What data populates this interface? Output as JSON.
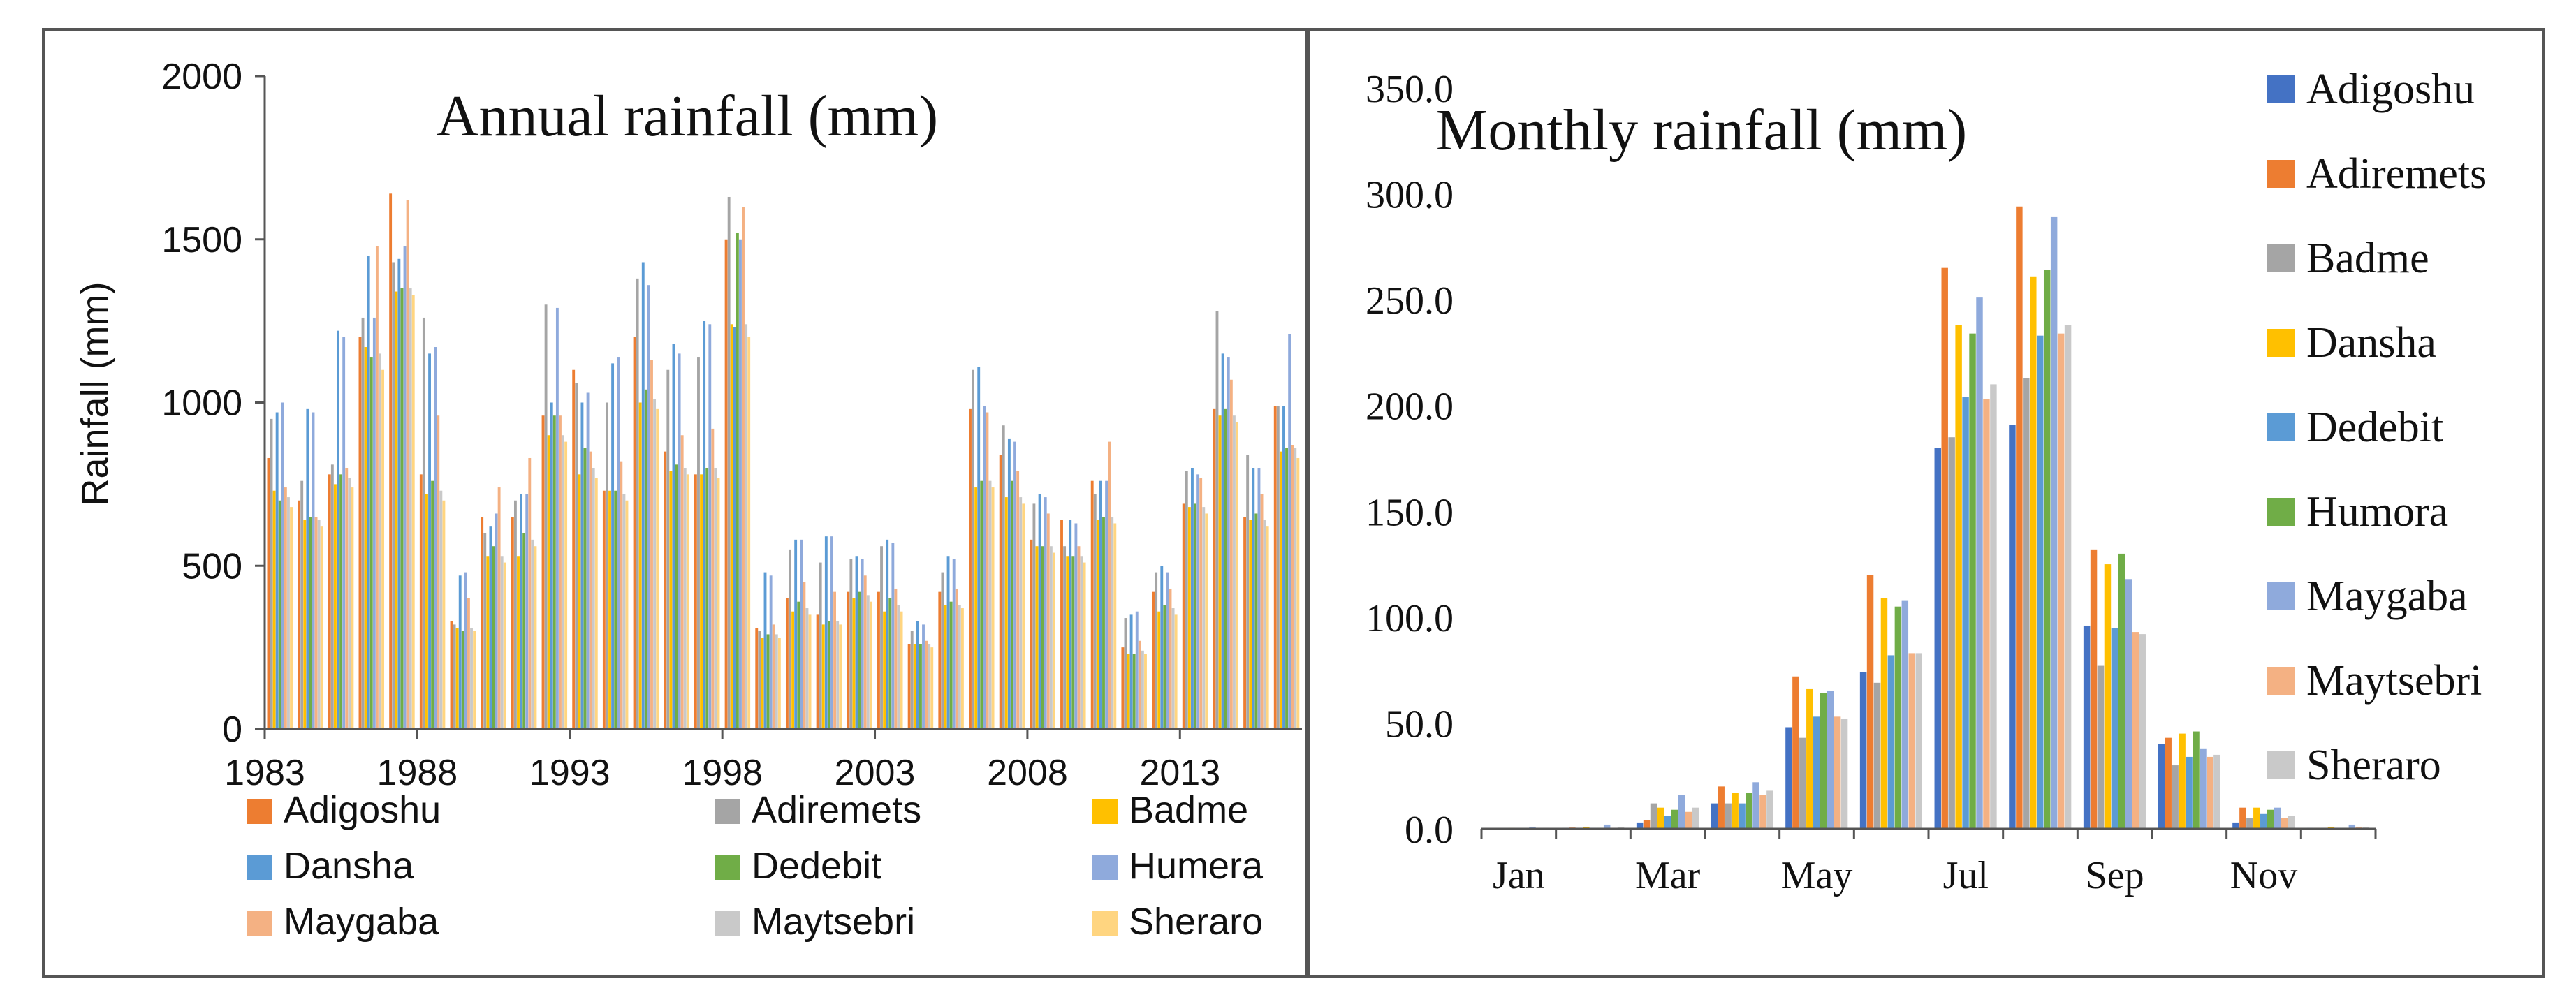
{
  "colors": {
    "Adigoshu": "#4472c4",
    "Adiremets": "#ed7d31",
    "Badme": "#a5a5a5",
    "Dansha": "#ffc000",
    "Dedebit": "#5b9bd5",
    "Humera": "#70ad47",
    "Maygaba": "#8faadc",
    "Maytsebri": "#f4b183",
    "Sheraro": "#c9c9c9"
  },
  "chart_data": [
    {
      "type": "bar",
      "title": "Annual rainfall (mm)",
      "ylabel": "Rainfall (mm)",
      "ylim": [
        0,
        2000
      ],
      "yticks": [
        "0",
        "500",
        "1000",
        "1500",
        "2000"
      ],
      "ytick_values": [
        0,
        500,
        1000,
        1500,
        2000
      ],
      "xtick_labels": [
        "1983",
        "1988",
        "1993",
        "1998",
        "2003",
        "2008",
        "2013"
      ],
      "legend": [
        {
          "name": "Adigoshu",
          "color": "#ed7d31"
        },
        {
          "name": "Adiremets",
          "color": "#a5a5a5"
        },
        {
          "name": "Badme",
          "color": "#ffc000"
        },
        {
          "name": "Dansha",
          "color": "#5b9bd5"
        },
        {
          "name": "Dedebit",
          "color": "#70ad47"
        },
        {
          "name": "Humera",
          "color": "#8faadc"
        },
        {
          "name": "Maygaba",
          "color": "#f4b183"
        },
        {
          "name": "Maytsebri",
          "color": "#c9c9c9"
        },
        {
          "name": "Sheraro",
          "color": "#ffd580"
        }
      ],
      "x": [
        1983,
        1984,
        1985,
        1986,
        1987,
        1988,
        1989,
        1990,
        1991,
        1992,
        1993,
        1994,
        1995,
        1996,
        1997,
        1998,
        1999,
        2000,
        2001,
        2002,
        2003,
        2004,
        2005,
        2006,
        2007,
        2008,
        2009,
        2010,
        2011,
        2012,
        2013,
        2014,
        2015,
        2016
      ],
      "series": [
        {
          "name": "Adigoshu",
          "color": "#ed7d31",
          "values": [
            830,
            700,
            780,
            1200,
            1640,
            780,
            330,
            650,
            650,
            960,
            1100,
            730,
            1200,
            850,
            780,
            1500,
            310,
            400,
            350,
            420,
            420,
            260,
            420,
            980,
            840,
            580,
            640,
            760,
            250,
            420,
            690,
            980,
            650,
            990
          ]
        },
        {
          "name": "Adiremets",
          "color": "#a5a5a5",
          "values": [
            950,
            760,
            810,
            1260,
            1430,
            1260,
            320,
            600,
            700,
            1300,
            1060,
            1000,
            1380,
            1100,
            1140,
            1630,
            300,
            550,
            510,
            520,
            560,
            300,
            480,
            1100,
            930,
            690,
            560,
            720,
            340,
            480,
            790,
            1280,
            840,
            990
          ]
        },
        {
          "name": "Badme",
          "color": "#ffc000",
          "values": [
            730,
            640,
            750,
            1170,
            1340,
            720,
            310,
            530,
            530,
            900,
            780,
            730,
            1000,
            790,
            780,
            1240,
            280,
            360,
            320,
            400,
            360,
            260,
            380,
            740,
            710,
            560,
            530,
            640,
            230,
            360,
            680,
            960,
            640,
            850
          ]
        },
        {
          "name": "Dansha",
          "color": "#5b9bd5",
          "values": [
            970,
            980,
            1220,
            1450,
            1440,
            1150,
            470,
            620,
            720,
            1000,
            1000,
            1120,
            1430,
            1180,
            1250,
            1230,
            480,
            580,
            590,
            530,
            580,
            330,
            530,
            1110,
            890,
            720,
            640,
            760,
            350,
            500,
            800,
            1150,
            800,
            990
          ]
        },
        {
          "name": "Dedebit",
          "color": "#70ad47",
          "values": [
            700,
            650,
            780,
            1140,
            1350,
            760,
            300,
            560,
            600,
            960,
            860,
            730,
            1040,
            810,
            800,
            1520,
            290,
            390,
            330,
            420,
            400,
            260,
            390,
            760,
            760,
            560,
            530,
            650,
            230,
            380,
            690,
            980,
            660,
            860
          ]
        },
        {
          "name": "Humera",
          "color": "#8faadc",
          "values": [
            1000,
            970,
            1200,
            1260,
            1480,
            1170,
            480,
            660,
            720,
            1290,
            1030,
            1140,
            1360,
            1150,
            1240,
            1500,
            470,
            580,
            590,
            520,
            570,
            320,
            520,
            990,
            880,
            710,
            630,
            760,
            360,
            480,
            780,
            1140,
            800,
            1210
          ]
        },
        {
          "name": "Maygaba",
          "color": "#f4b183",
          "values": [
            740,
            650,
            800,
            1480,
            1620,
            960,
            400,
            740,
            830,
            960,
            850,
            820,
            1130,
            900,
            920,
            1600,
            320,
            450,
            420,
            470,
            430,
            270,
            430,
            970,
            790,
            660,
            560,
            880,
            270,
            430,
            770,
            1070,
            720,
            870
          ]
        },
        {
          "name": "Maytsebri",
          "color": "#c9c9c9",
          "values": [
            710,
            640,
            770,
            1150,
            1350,
            730,
            310,
            530,
            580,
            900,
            800,
            720,
            1010,
            800,
            800,
            1240,
            290,
            370,
            330,
            410,
            380,
            260,
            380,
            760,
            710,
            560,
            530,
            650,
            240,
            370,
            680,
            960,
            640,
            860
          ]
        },
        {
          "name": "Sheraro",
          "color": "#ffd580",
          "values": [
            680,
            620,
            740,
            1100,
            1330,
            700,
            300,
            510,
            560,
            880,
            770,
            700,
            980,
            780,
            770,
            1200,
            280,
            350,
            320,
            390,
            360,
            250,
            370,
            740,
            690,
            540,
            510,
            630,
            230,
            350,
            660,
            940,
            620,
            830
          ]
        }
      ]
    },
    {
      "type": "bar",
      "title": "Monthly rainfall (mm)",
      "ylim": [
        0,
        350
      ],
      "yticks": [
        "0.0",
        "50.0",
        "100.0",
        "150.0",
        "200.0",
        "250.0",
        "300.0",
        "350.0"
      ],
      "ytick_values": [
        0,
        50,
        100,
        150,
        200,
        250,
        300,
        350
      ],
      "categories": [
        "Jan",
        "Feb",
        "Mar",
        "Apr",
        "May",
        "Jun",
        "Jul",
        "Aug",
        "Sep",
        "Oct",
        "Nov",
        "Dec"
      ],
      "xtick_labels": [
        "Jan",
        "Mar",
        "May",
        "Jul",
        "Sep",
        "Nov"
      ],
      "series": [
        {
          "name": "Adigoshu",
          "color": "#4472c4",
          "values": [
            0.2,
            0.5,
            3.0,
            12.0,
            48.0,
            74.0,
            180.0,
            191.0,
            96.0,
            40.0,
            3.0,
            0.5
          ]
        },
        {
          "name": "Adiremets",
          "color": "#ed7d31",
          "values": [
            0.3,
            0.6,
            4.0,
            20.0,
            72.0,
            120.0,
            265.0,
            294.0,
            132.0,
            43.0,
            10.0,
            0.5
          ]
        },
        {
          "name": "Badme",
          "color": "#a5a5a5",
          "values": [
            0.2,
            0.5,
            12.0,
            12.0,
            43.0,
            69.0,
            185.0,
            213.0,
            77.0,
            30.0,
            5.0,
            0.5
          ]
        },
        {
          "name": "Dansha",
          "color": "#ffc000",
          "values": [
            0.5,
            1.0,
            10.0,
            17.0,
            66.0,
            109.0,
            238.0,
            261.0,
            125.0,
            45.0,
            10.0,
            1.0
          ]
        },
        {
          "name": "Dedebit",
          "color": "#5b9bd5",
          "values": [
            0.3,
            0.5,
            6.0,
            12.0,
            53.0,
            82.0,
            204.0,
            233.0,
            95.0,
            34.0,
            7.0,
            0.5
          ]
        },
        {
          "name": "Humora",
          "color": "#70ad47",
          "values": [
            0.2,
            0.5,
            9.0,
            17.0,
            64.0,
            105.0,
            234.0,
            264.0,
            130.0,
            46.0,
            9.0,
            0.5
          ]
        },
        {
          "name": "Maygaba",
          "color": "#8faadc",
          "values": [
            1.0,
            2.0,
            16.0,
            22.0,
            65.0,
            108.0,
            251.0,
            289.0,
            118.0,
            38.0,
            10.0,
            2.0
          ]
        },
        {
          "name": "Maytsebri",
          "color": "#f4b183",
          "values": [
            0.3,
            0.5,
            8.0,
            16.0,
            53.0,
            83.0,
            203.0,
            234.0,
            93.0,
            34.0,
            5.0,
            1.0
          ]
        },
        {
          "name": "Sheraro",
          "color": "#c9c9c9",
          "values": [
            0.5,
            1.0,
            10.0,
            18.0,
            52.0,
            83.0,
            210.0,
            238.0,
            92.0,
            35.0,
            6.0,
            1.0
          ]
        }
      ]
    }
  ]
}
